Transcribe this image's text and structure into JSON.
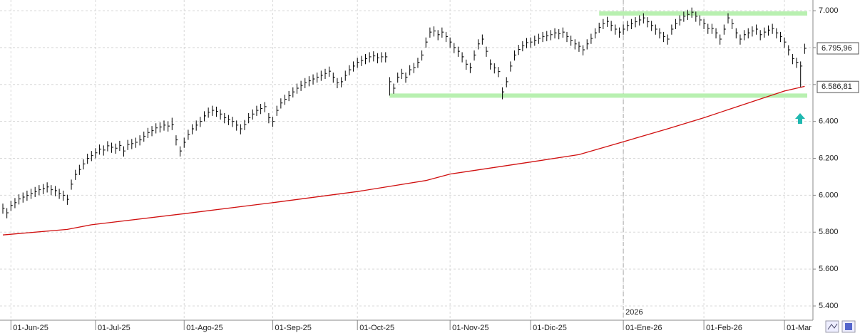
{
  "chart_data": {
    "type": "ohlc",
    "ylim": [
      5323,
      7058
    ],
    "yticks": [
      {
        "value": 5400,
        "label": "5.400"
      },
      {
        "value": 5600,
        "label": "5.600"
      },
      {
        "value": 5800,
        "label": "5.800"
      },
      {
        "value": 6000,
        "label": "6.000"
      },
      {
        "value": 6200,
        "label": "6.200"
      },
      {
        "value": 6400,
        "label": "6.400"
      },
      {
        "value": 6600,
        "label": "6.600"
      },
      {
        "value": 6800,
        "label": "6.800"
      },
      {
        "value": 7000,
        "label": "7.000"
      }
    ],
    "grid": true,
    "color": "#000000",
    "categories": [
      null,
      null,
      "01-Jun-25",
      null,
      null,
      null,
      null,
      null,
      null,
      null,
      null,
      null,
      null,
      null,
      null,
      null,
      null,
      null,
      null,
      null,
      null,
      null,
      null,
      "01-Jul-25",
      null,
      null,
      null,
      null,
      null,
      null,
      null,
      null,
      null,
      null,
      null,
      null,
      null,
      null,
      null,
      null,
      null,
      null,
      null,
      null,
      null,
      "01-Ago-25",
      null,
      null,
      null,
      null,
      null,
      null,
      null,
      null,
      null,
      null,
      null,
      null,
      null,
      null,
      null,
      null,
      null,
      null,
      null,
      null,
      null,
      "01-Sep-25",
      null,
      null,
      null,
      null,
      null,
      null,
      null,
      null,
      null,
      null,
      null,
      null,
      null,
      null,
      null,
      null,
      null,
      null,
      null,
      null,
      "01-Oct-25",
      null,
      null,
      null,
      null,
      null,
      null,
      null,
      null,
      null,
      null,
      null,
      null,
      null,
      null,
      null,
      null,
      null,
      null,
      null,
      null,
      null,
      null,
      "01-Nov-25",
      null,
      null,
      null,
      null,
      null,
      null,
      null,
      null,
      null,
      null,
      null,
      null,
      null,
      null,
      null,
      null,
      null,
      null,
      null,
      "01-Dic-25",
      null,
      null,
      null,
      null,
      null,
      null,
      null,
      null,
      null,
      null,
      null,
      null,
      null,
      null,
      null,
      null,
      null,
      null,
      null,
      null,
      null,
      null,
      "01-Ene-26",
      null,
      null,
      null,
      null,
      null,
      null,
      null,
      null,
      null,
      null,
      null,
      null,
      null,
      null,
      null,
      null,
      null,
      null,
      null,
      "01-Feb-26",
      null,
      null,
      null,
      null,
      null,
      null,
      null,
      null,
      null,
      null,
      null,
      null,
      null,
      null,
      null,
      null,
      null,
      null,
      null,
      "01-Mar",
      null,
      null,
      null,
      null,
      null
    ],
    "high": [
      5955,
      5930,
      5970,
      5985,
      6005,
      6015,
      6025,
      6035,
      6045,
      6055,
      6061,
      6070,
      6055,
      6050,
      6035,
      6025,
      6003,
      6085,
      6138,
      6165,
      6195,
      6225,
      6240,
      6255,
      6275,
      6270,
      6293,
      6285,
      6280,
      6295,
      6265,
      6300,
      6305,
      6312,
      6325,
      6345,
      6365,
      6375,
      6390,
      6395,
      6405,
      6400,
      6420,
      6325,
      6265,
      6312,
      6355,
      6385,
      6405,
      6425,
      6455,
      6475,
      6485,
      6480,
      6465,
      6445,
      6435,
      6425,
      6405,
      6385,
      6408,
      6445,
      6465,
      6485,
      6495,
      6505,
      6445,
      6425,
      6485,
      6525,
      6545,
      6565,
      6585,
      6605,
      6620,
      6635,
      6645,
      6655,
      6665,
      6675,
      6685,
      6697,
      6665,
      6635,
      6640,
      6675,
      6705,
      6725,
      6745,
      6755,
      6765,
      6775,
      6780,
      6770,
      6775,
      6775,
      6640,
      6605,
      6665,
      6685,
      6665,
      6705,
      6717,
      6745,
      6785,
      6855,
      6909,
      6915,
      6895,
      6909,
      6885,
      6855,
      6825,
      6805,
      6775,
      6735,
      6717,
      6785,
      6845,
      6871,
      6805,
      6736,
      6715,
      6695,
      6585,
      6640,
      6725,
      6785,
      6815,
      6835,
      6852,
      6855,
      6865,
      6875,
      6885,
      6890,
      6895,
      6905,
      6900,
      6909,
      6885,
      6865,
      6845,
      6832,
      6813,
      6845,
      6875,
      6905,
      6935,
      6955,
      6967,
      6945,
      6925,
      6909,
      6925,
      6945,
      6955,
      6965,
      6975,
      6986,
      6965,
      6945,
      6925,
      6905,
      6885,
      6871,
      6925,
      6955,
      6975,
      6995,
      7005,
      7017,
      6995,
      6975,
      6955,
      6929,
      6929,
      6905,
      6871,
      6925,
      6986,
      6955,
      6905,
      6871,
      6895,
      6905,
      6915,
      6925,
      6895,
      6909,
      6920,
      6929,
      6905,
      6885,
      6855,
      6813,
      6765,
      6745,
      6725,
      6821
    ],
    "low": [
      5900,
      5875,
      5915,
      5930,
      5950,
      5960,
      5970,
      5980,
      5990,
      6000,
      6006,
      6015,
      6000,
      5995,
      5980,
      5970,
      5948,
      6030,
      6083,
      6110,
      6140,
      6170,
      6185,
      6200,
      6220,
      6215,
      6238,
      6230,
      6225,
      6240,
      6210,
      6245,
      6250,
      6257,
      6270,
      6290,
      6310,
      6320,
      6335,
      6340,
      6350,
      6345,
      6353,
      6270,
      6210,
      6257,
      6300,
      6330,
      6350,
      6370,
      6400,
      6420,
      6430,
      6425,
      6410,
      6390,
      6380,
      6370,
      6350,
      6330,
      6353,
      6390,
      6410,
      6430,
      6440,
      6450,
      6390,
      6370,
      6430,
      6470,
      6490,
      6510,
      6530,
      6550,
      6565,
      6580,
      6590,
      6600,
      6610,
      6620,
      6630,
      6642,
      6610,
      6580,
      6585,
      6620,
      6650,
      6670,
      6690,
      6700,
      6710,
      6720,
      6725,
      6715,
      6720,
      6720,
      6540,
      6550,
      6610,
      6630,
      6610,
      6650,
      6662,
      6690,
      6730,
      6800,
      6854,
      6860,
      6840,
      6854,
      6830,
      6800,
      6770,
      6750,
      6720,
      6680,
      6662,
      6730,
      6790,
      6816,
      6750,
      6681,
      6660,
      6640,
      6520,
      6585,
      6670,
      6730,
      6760,
      6780,
      6797,
      6800,
      6810,
      6820,
      6830,
      6835,
      6840,
      6850,
      6845,
      6854,
      6830,
      6810,
      6790,
      6777,
      6758,
      6790,
      6820,
      6850,
      6880,
      6900,
      6912,
      6890,
      6870,
      6854,
      6870,
      6890,
      6900,
      6910,
      6920,
      6931,
      6910,
      6890,
      6870,
      6850,
      6830,
      6816,
      6870,
      6900,
      6920,
      6940,
      6950,
      6962,
      6940,
      6920,
      6900,
      6874,
      6874,
      6850,
      6816,
      6870,
      6931,
      6900,
      6850,
      6816,
      6840,
      6850,
      6860,
      6870,
      6840,
      6854,
      6865,
      6874,
      6850,
      6830,
      6800,
      6758,
      6710,
      6690,
      6586.81,
      6766
    ],
    "close": [
      5930,
      5905,
      5945,
      5960,
      5980,
      5990,
      6000,
      6010,
      6020,
      6030,
      6036,
      6045,
      6030,
      6025,
      6010,
      6000,
      5978,
      6060,
      6113,
      6140,
      6170,
      6200,
      6215,
      6230,
      6250,
      6245,
      6268,
      6260,
      6255,
      6270,
      6240,
      6275,
      6280,
      6287,
      6300,
      6320,
      6340,
      6350,
      6365,
      6370,
      6380,
      6375,
      6383,
      6300,
      6240,
      6287,
      6330,
      6360,
      6380,
      6400,
      6430,
      6450,
      6460,
      6455,
      6440,
      6420,
      6410,
      6400,
      6380,
      6360,
      6383,
      6420,
      6440,
      6460,
      6470,
      6480,
      6420,
      6400,
      6460,
      6500,
      6520,
      6540,
      6560,
      6580,
      6595,
      6610,
      6620,
      6630,
      6640,
      6650,
      6660,
      6672,
      6640,
      6610,
      6615,
      6650,
      6680,
      6700,
      6720,
      6730,
      6740,
      6750,
      6755,
      6745,
      6750,
      6750,
      6615,
      6580,
      6640,
      6660,
      6640,
      6680,
      6692,
      6720,
      6760,
      6830,
      6884,
      6890,
      6870,
      6884,
      6860,
      6830,
      6800,
      6780,
      6750,
      6710,
      6692,
      6760,
      6820,
      6846,
      6780,
      6711,
      6690,
      6670,
      6560,
      6615,
      6700,
      6760,
      6790,
      6810,
      6827,
      6830,
      6840,
      6850,
      6860,
      6865,
      6870,
      6880,
      6875,
      6884,
      6860,
      6840,
      6820,
      6807,
      6788,
      6820,
      6850,
      6880,
      6910,
      6930,
      6942,
      6920,
      6900,
      6884,
      6900,
      6920,
      6930,
      6940,
      6950,
      6961,
      6940,
      6920,
      6900,
      6880,
      6860,
      6846,
      6900,
      6930,
      6950,
      6970,
      6980,
      6992,
      6970,
      6950,
      6930,
      6904,
      6904,
      6880,
      6846,
      6900,
      6961,
      6930,
      6880,
      6846,
      6870,
      6880,
      6890,
      6900,
      6870,
      6884,
      6895,
      6904,
      6880,
      6860,
      6830,
      6788,
      6740,
      6720,
      6700,
      6795.96
    ],
    "moving_average": {
      "color": "#d01010",
      "x": [
        0,
        16,
        22,
        45,
        67,
        88,
        105,
        111,
        131,
        143,
        154,
        165,
        174,
        185,
        194,
        199
      ],
      "values": [
        5785,
        5815,
        5840,
        5900,
        5960,
        6020,
        6080,
        6115,
        6180,
        6220,
        6290,
        6360,
        6420,
        6500,
        6565,
        6590
      ]
    },
    "levels": [
      {
        "value": 6985,
        "color": "#b8f0b0"
      },
      {
        "value": 6540,
        "color": "#b8f0b0"
      }
    ],
    "price_labels": [
      {
        "value": 6795.96,
        "label": "6.795,96"
      },
      {
        "value": 6586.81,
        "label": "6.586,81"
      }
    ],
    "year_label": "2026"
  }
}
